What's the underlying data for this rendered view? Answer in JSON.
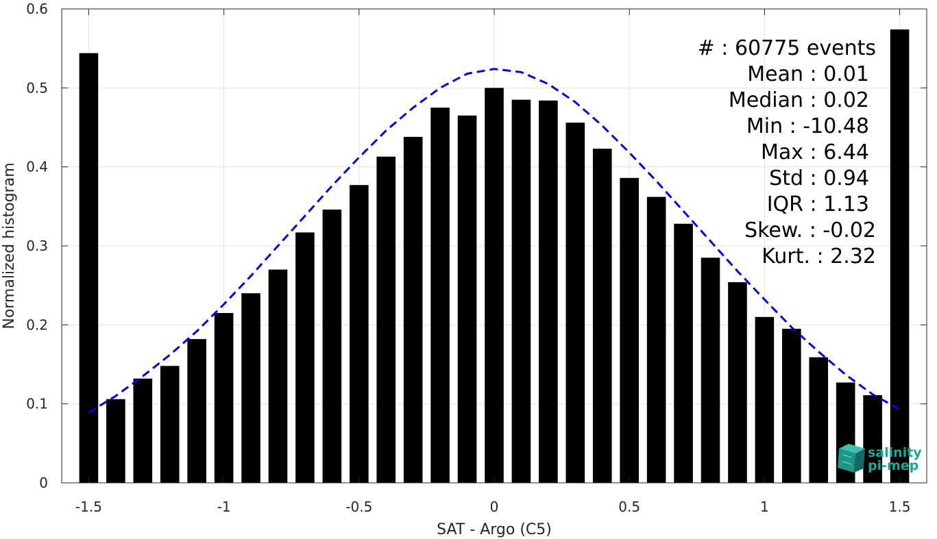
{
  "chart_data": {
    "type": "bar",
    "xlabel": "SAT - Argo (C5)",
    "ylabel": "Normalized histogram",
    "xlim": [
      -1.6,
      1.6
    ],
    "ylim": [
      0,
      0.6
    ],
    "grid": true,
    "x_ticks": [
      "-1.5",
      "-1",
      "-0.5",
      "0",
      "0.5",
      "1",
      "1.5"
    ],
    "x_tick_values": [
      -1.5,
      -1,
      -0.5,
      0,
      0.5,
      1,
      1.5
    ],
    "y_ticks": [
      "0",
      "0.1",
      "0.2",
      "0.3",
      "0.4",
      "0.5",
      "0.6"
    ],
    "y_tick_values": [
      0,
      0.1,
      0.2,
      0.3,
      0.4,
      0.5,
      0.6
    ],
    "bar_color": "#000000",
    "bar_width": 0.07,
    "bars": {
      "x": [
        -1.5,
        -1.4,
        -1.3,
        -1.2,
        -1.1,
        -1.0,
        -0.9,
        -0.8,
        -0.7,
        -0.6,
        -0.5,
        -0.4,
        -0.3,
        -0.2,
        -0.1,
        0.0,
        0.1,
        0.2,
        0.3,
        0.4,
        0.5,
        0.6,
        0.7,
        0.8,
        0.9,
        1.0,
        1.1,
        1.2,
        1.3,
        1.4,
        1.5
      ],
      "values": [
        0.544,
        0.106,
        0.132,
        0.148,
        0.182,
        0.215,
        0.24,
        0.27,
        0.317,
        0.346,
        0.377,
        0.413,
        0.438,
        0.475,
        0.465,
        0.5,
        0.485,
        0.484,
        0.456,
        0.423,
        0.386,
        0.362,
        0.328,
        0.285,
        0.254,
        0.21,
        0.195,
        0.159,
        0.127,
        0.111,
        0.574
      ]
    },
    "fit_curve": {
      "style": "dashed",
      "color": "#0000e6",
      "x": [
        -1.5,
        -1.4,
        -1.3,
        -1.2,
        -1.1,
        -1.0,
        -0.9,
        -0.8,
        -0.7,
        -0.6,
        -0.5,
        -0.4,
        -0.3,
        -0.2,
        -0.1,
        0.0,
        0.1,
        0.2,
        0.3,
        0.4,
        0.5,
        0.6,
        0.7,
        0.8,
        0.9,
        1.0,
        1.1,
        1.2,
        1.3,
        1.4,
        1.5
      ],
      "values": [
        0.089,
        0.11,
        0.135,
        0.162,
        0.192,
        0.226,
        0.262,
        0.3,
        0.338,
        0.376,
        0.412,
        0.446,
        0.475,
        0.5,
        0.518,
        0.524,
        0.52,
        0.505,
        0.482,
        0.452,
        0.418,
        0.382,
        0.344,
        0.306,
        0.268,
        0.232,
        0.197,
        0.166,
        0.137,
        0.112,
        0.093
      ]
    },
    "annotations": [
      "#  : 60775 events",
      "Mean : 0.01",
      "Median : 0.02",
      "Min : -10.48",
      "Max : 6.44",
      "Std : 0.94",
      "IQR : 1.13",
      "Skew. : -0.02",
      "Kurt. : 2.32"
    ]
  },
  "logo": {
    "line1": "salinity",
    "line2": "pi-mep",
    "color": "#1aa79a"
  }
}
